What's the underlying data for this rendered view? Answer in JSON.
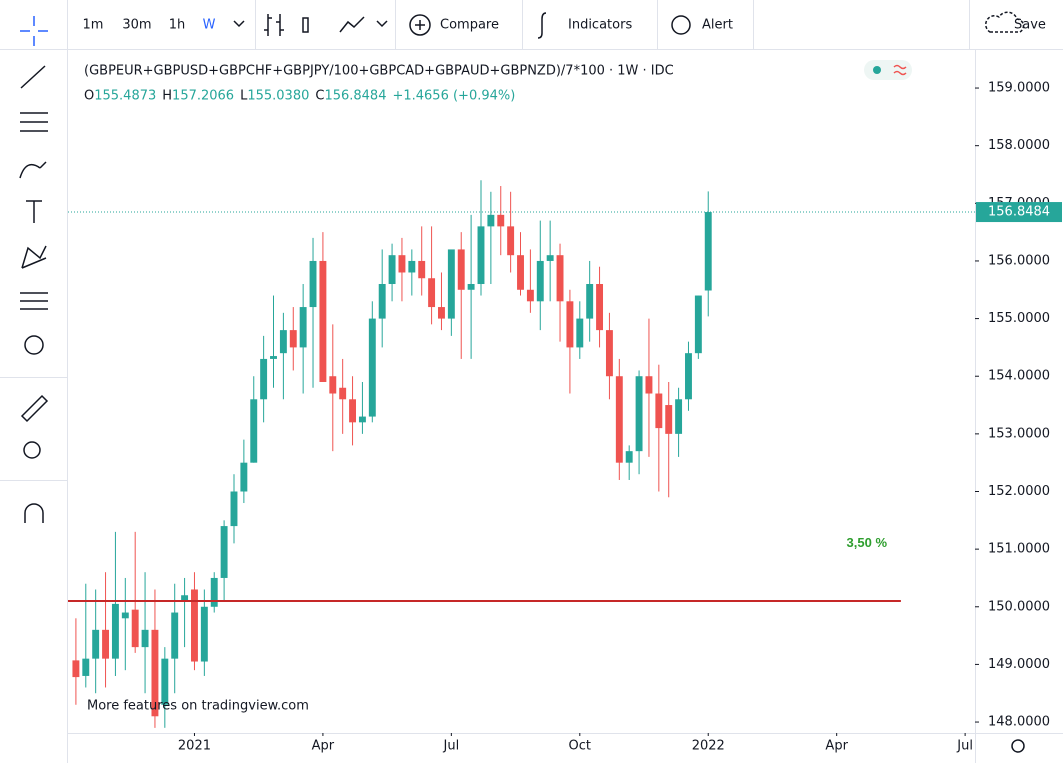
{
  "toolbar": {
    "intervals": [
      "1m",
      "30m",
      "1h",
      "W"
    ],
    "compare": "Compare",
    "indicators": "Indicators",
    "alert": "Alert",
    "save": "Save"
  },
  "legend": {
    "title": "(GBPEUR+GBPUSD+GBPCHF+GBPJPY/100+GBPCAD+GBPAUD+GBPNZD)/7*100 · 1W · IDC",
    "ohlc": [
      {
        "label": "O",
        "value": "155.4873"
      },
      {
        "label": "H",
        "value": "157.2066"
      },
      {
        "label": "L",
        "value": "155.0380"
      },
      {
        "label": "C",
        "value": "156.8484"
      }
    ],
    "change": "+1.4656 (+0.94%)"
  },
  "watermark": "More features on tradingview.com",
  "chart_data": {
    "type": "candlestick",
    "up_color": "#26a69a",
    "down_color": "#ef5350",
    "open": [
      149.07,
      148.8,
      149.1,
      149.6,
      149.1,
      149.8,
      149.95,
      149.3,
      149.6,
      148.3,
      149.1,
      150.1,
      150.3,
      149.05,
      150.0,
      150.5,
      151.4,
      152.0,
      152.5,
      153.6,
      154.3,
      154.4,
      154.8,
      154.5,
      155.2,
      156.0,
      154.0,
      153.8,
      153.6,
      153.2,
      153.3,
      155.0,
      155.6,
      156.1,
      155.8,
      156.0,
      155.7,
      155.2,
      155.0,
      156.2,
      155.5,
      155.6,
      156.6,
      156.8,
      156.6,
      156.1,
      155.5,
      155.3,
      156.0,
      156.1,
      155.3,
      154.5,
      155.0,
      155.6,
      154.8,
      154.0,
      152.5,
      152.7,
      154.0,
      153.7,
      153.5,
      153.0,
      153.6,
      154.4,
      155.4873
    ],
    "high": [
      149.8,
      150.4,
      150.3,
      150.6,
      151.3,
      150.5,
      151.3,
      150.6,
      150.3,
      149.3,
      150.4,
      150.5,
      150.6,
      150.3,
      150.6,
      151.5,
      152.3,
      152.9,
      154.0,
      154.7,
      155.4,
      155.1,
      155.2,
      155.6,
      156.4,
      156.5,
      154.9,
      154.3,
      154.0,
      153.9,
      155.3,
      156.2,
      156.3,
      156.4,
      156.2,
      156.6,
      156.6,
      155.8,
      156.1,
      156.5,
      156.8,
      157.4,
      157.2,
      157.3,
      157.2,
      156.5,
      156.2,
      156.7,
      156.7,
      156.3,
      155.5,
      155.3,
      156.0,
      155.9,
      155.1,
      154.3,
      152.8,
      154.1,
      155.0,
      154.2,
      153.9,
      153.8,
      154.6,
      155.4,
      157.2066
    ],
    "low": [
      148.3,
      148.6,
      148.5,
      148.6,
      148.8,
      148.9,
      149.2,
      148.5,
      147.9,
      147.9,
      148.5,
      149.3,
      148.9,
      148.8,
      149.9,
      150.1,
      151.1,
      151.8,
      152.5,
      153.2,
      153.8,
      153.6,
      154.1,
      153.7,
      153.8,
      153.9,
      152.7,
      153.0,
      152.8,
      153.0,
      153.2,
      154.5,
      155.3,
      155.3,
      155.4,
      155.4,
      154.9,
      154.8,
      154.7,
      154.3,
      154.3,
      155.4,
      155.6,
      156.1,
      155.8,
      155.4,
      155.1,
      154.8,
      155.3,
      154.6,
      153.7,
      154.3,
      154.6,
      154.5,
      153.6,
      152.2,
      152.2,
      152.3,
      152.6,
      152.0,
      151.9,
      152.6,
      153.4,
      154.3,
      155.038
    ],
    "close": [
      148.78,
      149.1,
      149.6,
      149.1,
      150.05,
      149.9,
      149.3,
      149.6,
      148.1,
      149.1,
      149.9,
      150.2,
      149.05,
      150.0,
      150.5,
      151.4,
      152.0,
      152.5,
      153.6,
      154.3,
      154.35,
      154.8,
      154.5,
      155.2,
      156.0,
      153.9,
      153.7,
      153.6,
      153.2,
      153.3,
      155.0,
      155.6,
      156.1,
      155.8,
      156.0,
      155.7,
      155.2,
      155.0,
      156.2,
      155.5,
      155.6,
      156.6,
      156.8,
      156.6,
      156.1,
      155.5,
      155.3,
      156.0,
      156.1,
      155.3,
      154.5,
      155.0,
      155.6,
      154.8,
      154.0,
      152.5,
      152.7,
      154.0,
      153.7,
      153.1,
      153.0,
      153.6,
      154.4,
      155.4,
      156.8484
    ],
    "xlim": [
      -0.8,
      91
    ],
    "xticks": [
      {
        "value": 12,
        "label": "2021"
      },
      {
        "value": 25,
        "label": "Apr"
      },
      {
        "value": 38,
        "label": "Jul"
      },
      {
        "value": 51,
        "label": "Oct"
      },
      {
        "value": 64,
        "label": "2022"
      },
      {
        "value": 77,
        "label": "Apr"
      },
      {
        "value": 90,
        "label": "Jul"
      }
    ],
    "ylim": [
      147.81,
      159.66
    ],
    "yticks": [
      {
        "value": 148,
        "label": "148.0000"
      },
      {
        "value": 149,
        "label": "149.0000"
      },
      {
        "value": 150,
        "label": "150.0000"
      },
      {
        "value": 151,
        "label": "151.0000"
      },
      {
        "value": 152,
        "label": "152.0000"
      },
      {
        "value": 153,
        "label": "153.0000"
      },
      {
        "value": 154,
        "label": "154.0000"
      },
      {
        "value": 155,
        "label": "155.0000"
      },
      {
        "value": 156,
        "label": "156.0000"
      },
      {
        "value": 157,
        "label": "157.0000"
      },
      {
        "value": 158,
        "label": "158.0000"
      },
      {
        "value": 159,
        "label": "159.0000"
      }
    ],
    "last_price": {
      "value": 156.8484,
      "label": "156.8484"
    },
    "hline": {
      "value": 150.1,
      "color": "#c62828",
      "end": 83.5
    },
    "annotation": {
      "text": "3,50 %",
      "color": "#2e9e2e",
      "x": 78,
      "y": 151.1
    }
  }
}
